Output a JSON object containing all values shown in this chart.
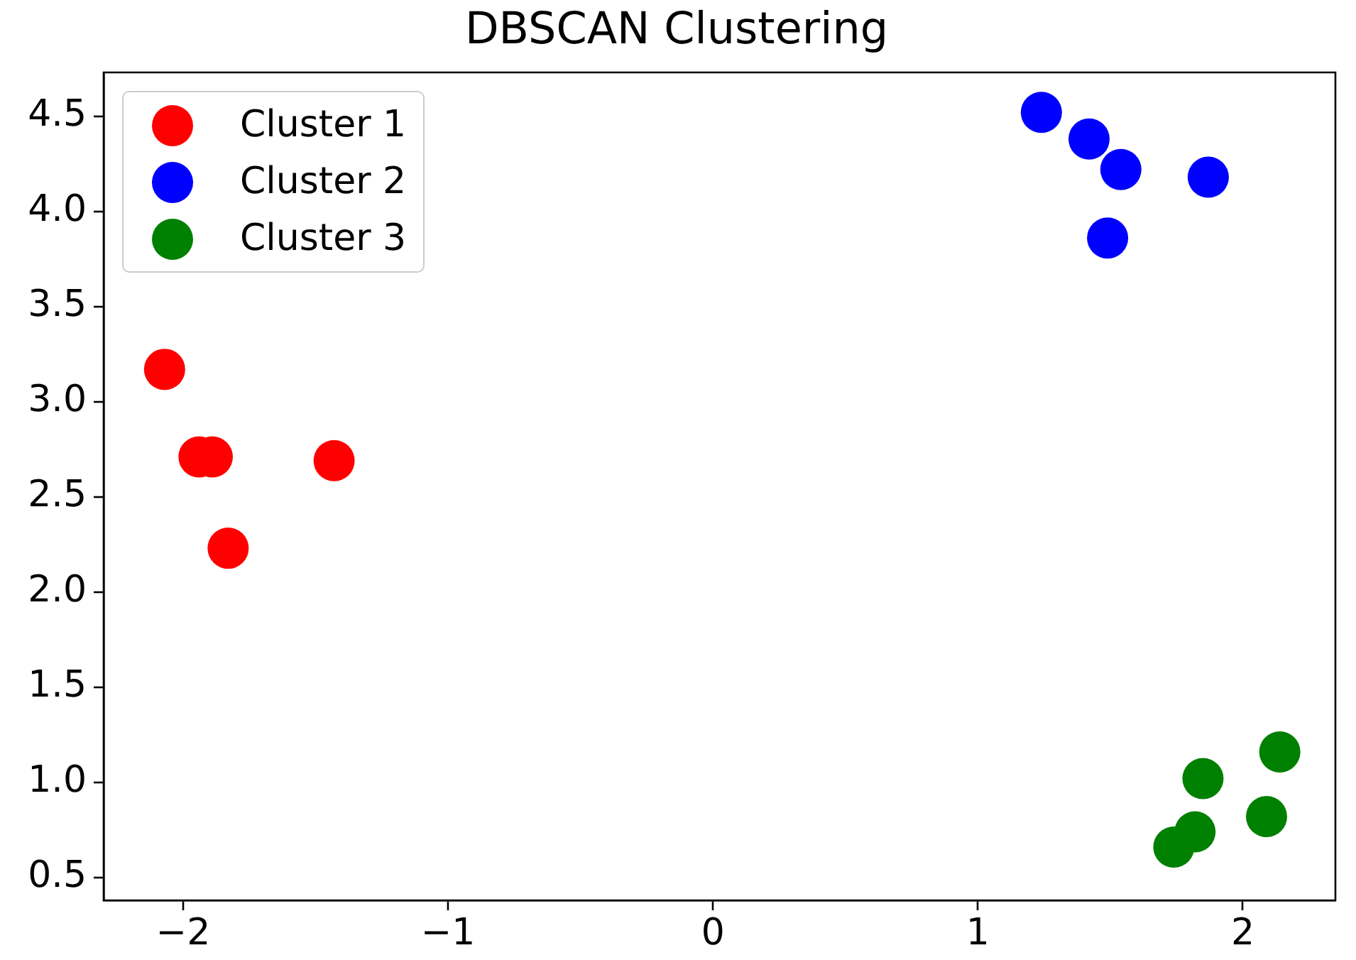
{
  "chart_data": {
    "type": "scatter",
    "title": "DBSCAN Clustering",
    "series": [
      {
        "name": "Cluster 1",
        "color": "#ff0000",
        "x": [
          -2.07,
          -1.94,
          -1.89,
          -1.43,
          -1.83
        ],
        "values": [
          3.17,
          2.71,
          2.71,
          2.69,
          2.23
        ]
      },
      {
        "name": "Cluster 2",
        "color": "#0000ff",
        "x": [
          1.24,
          1.42,
          1.54,
          1.87,
          1.49
        ],
        "values": [
          4.52,
          4.38,
          4.22,
          4.18,
          3.86
        ]
      },
      {
        "name": "Cluster 3",
        "color": "#008000",
        "x": [
          2.14,
          1.85,
          2.09,
          1.82,
          1.74
        ],
        "values": [
          1.16,
          1.02,
          0.82,
          0.74,
          0.66
        ]
      }
    ],
    "xlim": [
      -2.3,
      2.35
    ],
    "ylim": [
      0.38,
      4.73
    ],
    "xticks": [
      {
        "value": -2,
        "label": "−2"
      },
      {
        "value": -1,
        "label": "−1"
      },
      0,
      1,
      2
    ],
    "yticks": [
      0.5,
      {
        "value": 1,
        "label": "1.0"
      },
      1.5,
      {
        "value": 2,
        "label": "2.0"
      },
      2.5,
      {
        "value": 3,
        "label": "3.0"
      },
      3.5,
      {
        "value": 4,
        "label": "4.0"
      },
      4.5
    ],
    "legend": "top left",
    "marker": "circle"
  }
}
